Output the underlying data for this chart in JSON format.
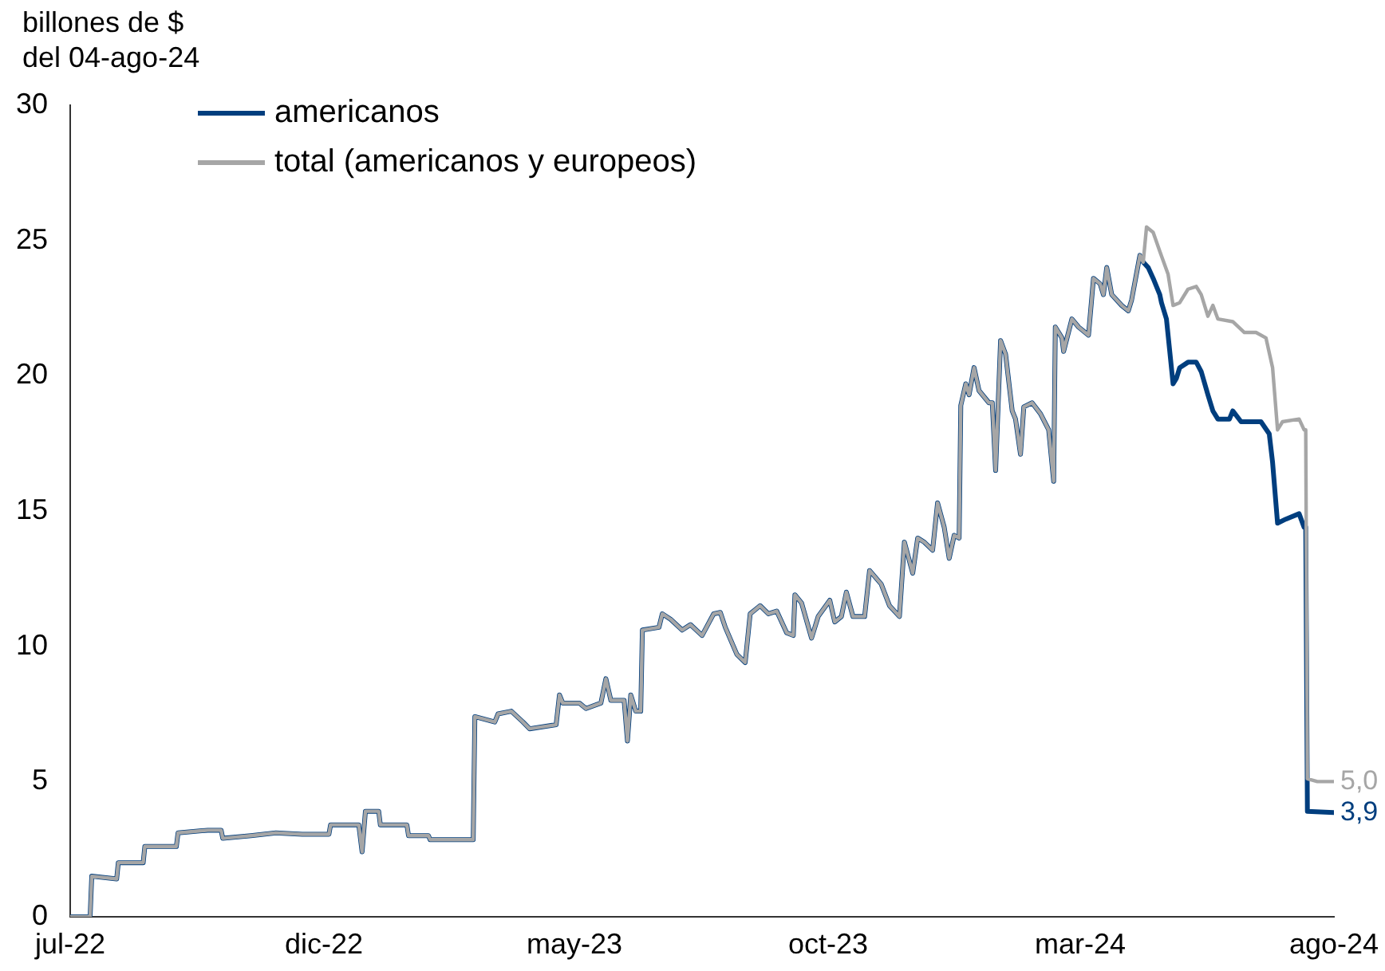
{
  "chart_data": {
    "type": "line",
    "ylabel": "billones de $\ndel 04-ago-24",
    "xlim": [
      "2022-07-01",
      "2024-08-01"
    ],
    "xticks": [
      {
        "value": "2022-07-01",
        "label": "jul-22"
      },
      {
        "value": "2022-12-01",
        "label": "dic-22"
      },
      {
        "value": "2023-05-01",
        "label": "may-23"
      },
      {
        "value": "2023-10-01",
        "label": "oct-23"
      },
      {
        "value": "2024-03-01",
        "label": "mar-24"
      },
      {
        "value": "2024-08-01",
        "label": "ago-24"
      }
    ],
    "ylim": [
      0,
      30
    ],
    "yticks": [
      0,
      5,
      10,
      15,
      20,
      25,
      30
    ],
    "grid": false,
    "legend": "top left",
    "marker": "none",
    "line_style": "solid",
    "annotations": [
      {
        "text": "5,0",
        "x": "2024-08-01",
        "y": 5.0
      },
      {
        "text": "3,9",
        "x": "2024-08-01",
        "y": 3.85
      }
    ],
    "series": [
      {
        "name": "americanos",
        "color": "#003e7e",
        "x": [
          "2022-07-01",
          "2022-07-13",
          "2022-07-14",
          "2022-07-29",
          "2022-07-30",
          "2022-08-14",
          "2022-08-15",
          "2022-09-03",
          "2022-09-04",
          "2022-09-22",
          "2022-09-30",
          "2022-10-01",
          "2022-10-18",
          "2022-11-02",
          "2022-11-18",
          "2022-12-04",
          "2022-12-05",
          "2022-12-22",
          "2022-12-24",
          "2022-12-26",
          "2023-01-03",
          "2023-01-04",
          "2023-01-20",
          "2023-01-21",
          "2023-02-02",
          "2023-02-03",
          "2023-03-01",
          "2023-03-02",
          "2023-03-14",
          "2023-03-16",
          "2023-03-24",
          "2023-03-31",
          "2023-04-04",
          "2023-04-20",
          "2023-04-22",
          "2023-04-24",
          "2023-05-04",
          "2023-05-08",
          "2023-05-17",
          "2023-05-20",
          "2023-05-23",
          "2023-05-31",
          "2023-06-02",
          "2023-06-04",
          "2023-06-07",
          "2023-06-10",
          "2023-06-11",
          "2023-06-21",
          "2023-06-23",
          "2023-06-28",
          "2023-07-05",
          "2023-07-10",
          "2023-07-17",
          "2023-07-24",
          "2023-07-28",
          "2023-07-31",
          "2023-08-07",
          "2023-08-12",
          "2023-08-15",
          "2023-08-21",
          "2023-08-26",
          "2023-08-31",
          "2023-09-06",
          "2023-09-10",
          "2023-09-11",
          "2023-09-15",
          "2023-09-21",
          "2023-09-25",
          "2023-10-02",
          "2023-10-05",
          "2023-10-09",
          "2023-10-12",
          "2023-10-16",
          "2023-10-23",
          "2023-10-26",
          "2023-11-02",
          "2023-11-07",
          "2023-11-13",
          "2023-11-16",
          "2023-11-21",
          "2023-11-24",
          "2023-11-28",
          "2023-12-03",
          "2023-12-06",
          "2023-12-10",
          "2023-12-13",
          "2023-12-16",
          "2023-12-19",
          "2023-12-20",
          "2023-12-23",
          "2023-12-25",
          "2023-12-28",
          "2023-12-31",
          "2024-01-06",
          "2024-01-08",
          "2024-01-10",
          "2024-01-13",
          "2024-01-16",
          "2024-01-20",
          "2024-01-22",
          "2024-01-25",
          "2024-01-27",
          "2024-02-01",
          "2024-02-06",
          "2024-02-11",
          "2024-02-14",
          "2024-02-15",
          "2024-02-19",
          "2024-02-20",
          "2024-02-25",
          "2024-02-29",
          "2024-03-06",
          "2024-03-09",
          "2024-03-13",
          "2024-03-15",
          "2024-03-17",
          "2024-03-20",
          "2024-03-26",
          "2024-03-30",
          "2024-04-01",
          "2024-04-06",
          "2024-04-08",
          "2024-04-11",
          "2024-04-14",
          "2024-04-18",
          "2024-04-19",
          "2024-04-22",
          "2024-04-24",
          "2024-04-26",
          "2024-04-28",
          "2024-04-30",
          "2024-05-05",
          "2024-05-10",
          "2024-05-13",
          "2024-05-17",
          "2024-05-20",
          "2024-05-23",
          "2024-05-30",
          "2024-06-01",
          "2024-06-06",
          "2024-06-18",
          "2024-06-23",
          "2024-06-25",
          "2024-06-28",
          "2024-07-03",
          "2024-07-11",
          "2024-07-14",
          "2024-07-15",
          "2024-07-16",
          "2024-08-01"
        ],
        "values": [
          0,
          0,
          1.5,
          1.4,
          2.0,
          2.0,
          2.6,
          2.6,
          3.1,
          3.2,
          3.2,
          2.9,
          3.0,
          3.1,
          3.05,
          3.05,
          3.4,
          3.4,
          2.4,
          3.9,
          3.9,
          3.4,
          3.4,
          3.0,
          3.0,
          2.85,
          2.85,
          7.4,
          7.2,
          7.5,
          7.6,
          7.2,
          6.95,
          7.1,
          8.2,
          7.9,
          7.9,
          7.7,
          7.9,
          8.8,
          8.0,
          8.0,
          6.5,
          8.2,
          7.6,
          7.6,
          10.6,
          10.7,
          11.2,
          11.0,
          10.6,
          10.8,
          10.4,
          11.2,
          11.25,
          10.7,
          9.7,
          9.4,
          11.2,
          11.5,
          11.2,
          11.3,
          10.5,
          10.4,
          11.9,
          11.6,
          10.3,
          11.1,
          11.7,
          10.9,
          11.1,
          12.0,
          11.1,
          11.1,
          12.8,
          12.3,
          11.5,
          11.1,
          13.85,
          12.7,
          14.0,
          13.85,
          13.55,
          15.3,
          14.4,
          13.25,
          14.1,
          14.0,
          18.9,
          19.7,
          19.3,
          20.3,
          19.45,
          19.0,
          19.0,
          16.5,
          21.3,
          20.8,
          18.7,
          18.4,
          17.1,
          18.85,
          19.0,
          18.6,
          18.0,
          16.1,
          21.8,
          21.4,
          20.9,
          22.1,
          21.8,
          21.5,
          23.6,
          23.4,
          23.0,
          24.0,
          23.0,
          22.6,
          22.4,
          22.8,
          24.45,
          24.2,
          24.0,
          23.6,
          23.0,
          22.7,
          22.1,
          20.9,
          19.7,
          19.9,
          20.3,
          20.5,
          20.5,
          20.15,
          19.3,
          18.7,
          18.4,
          18.4,
          18.7,
          18.3,
          18.3,
          17.85,
          16.8,
          14.55,
          14.7,
          14.9,
          14.4,
          14.4,
          3.9,
          3.85
        ]
      },
      {
        "name": "total (americanos y europeos)",
        "color": "#a6a6a6",
        "x": [
          "2022-07-01",
          "2022-07-13",
          "2022-07-14",
          "2022-07-29",
          "2022-07-30",
          "2022-08-14",
          "2022-08-15",
          "2022-09-03",
          "2022-09-04",
          "2022-09-22",
          "2022-09-30",
          "2022-10-01",
          "2022-10-18",
          "2022-11-02",
          "2022-11-18",
          "2022-12-04",
          "2022-12-05",
          "2022-12-22",
          "2022-12-24",
          "2022-12-26",
          "2023-01-03",
          "2023-01-04",
          "2023-01-20",
          "2023-01-21",
          "2023-02-02",
          "2023-02-03",
          "2023-03-01",
          "2023-03-02",
          "2023-03-14",
          "2023-03-16",
          "2023-03-24",
          "2023-03-31",
          "2023-04-04",
          "2023-04-20",
          "2023-04-22",
          "2023-04-24",
          "2023-05-04",
          "2023-05-08",
          "2023-05-17",
          "2023-05-20",
          "2023-05-23",
          "2023-05-31",
          "2023-06-02",
          "2023-06-04",
          "2023-06-07",
          "2023-06-10",
          "2023-06-11",
          "2023-06-21",
          "2023-06-23",
          "2023-06-28",
          "2023-07-05",
          "2023-07-10",
          "2023-07-17",
          "2023-07-24",
          "2023-07-28",
          "2023-07-31",
          "2023-08-07",
          "2023-08-12",
          "2023-08-15",
          "2023-08-21",
          "2023-08-26",
          "2023-08-31",
          "2023-09-06",
          "2023-09-10",
          "2023-09-11",
          "2023-09-15",
          "2023-09-21",
          "2023-09-25",
          "2023-10-02",
          "2023-10-05",
          "2023-10-09",
          "2023-10-12",
          "2023-10-16",
          "2023-10-23",
          "2023-10-26",
          "2023-11-02",
          "2023-11-07",
          "2023-11-13",
          "2023-11-16",
          "2023-11-21",
          "2023-11-24",
          "2023-11-28",
          "2023-12-03",
          "2023-12-06",
          "2023-12-10",
          "2023-12-13",
          "2023-12-16",
          "2023-12-19",
          "2023-12-20",
          "2023-12-23",
          "2023-12-25",
          "2023-12-28",
          "2023-12-31",
          "2024-01-06",
          "2024-01-08",
          "2024-01-10",
          "2024-01-13",
          "2024-01-16",
          "2024-01-20",
          "2024-01-22",
          "2024-01-25",
          "2024-01-27",
          "2024-02-01",
          "2024-02-06",
          "2024-02-11",
          "2024-02-14",
          "2024-02-15",
          "2024-02-19",
          "2024-02-20",
          "2024-02-25",
          "2024-02-29",
          "2024-03-06",
          "2024-03-09",
          "2024-03-13",
          "2024-03-15",
          "2024-03-17",
          "2024-03-20",
          "2024-03-26",
          "2024-03-30",
          "2024-04-01",
          "2024-04-06",
          "2024-04-08",
          "2024-04-10",
          "2024-04-14",
          "2024-04-18",
          "2024-04-23",
          "2024-04-26",
          "2024-04-30",
          "2024-05-05",
          "2024-05-10",
          "2024-05-13",
          "2024-05-17",
          "2024-05-20",
          "2024-05-23",
          "2024-06-01",
          "2024-06-08",
          "2024-06-15",
          "2024-06-21",
          "2024-06-25",
          "2024-06-28",
          "2024-07-01",
          "2024-07-11",
          "2024-07-14",
          "2024-07-15",
          "2024-07-16",
          "2024-07-22",
          "2024-08-01"
        ],
        "values": [
          0,
          0,
          1.5,
          1.4,
          2.0,
          2.0,
          2.6,
          2.6,
          3.1,
          3.2,
          3.2,
          2.9,
          3.0,
          3.1,
          3.05,
          3.05,
          3.4,
          3.4,
          2.4,
          3.9,
          3.9,
          3.4,
          3.4,
          3.0,
          3.0,
          2.85,
          2.85,
          7.4,
          7.2,
          7.5,
          7.6,
          7.2,
          6.95,
          7.1,
          8.2,
          7.9,
          7.9,
          7.7,
          7.9,
          8.8,
          8.0,
          8.0,
          6.5,
          8.2,
          7.6,
          7.6,
          10.6,
          10.7,
          11.2,
          11.0,
          10.6,
          10.8,
          10.4,
          11.2,
          11.25,
          10.7,
          9.7,
          9.4,
          11.2,
          11.5,
          11.2,
          11.3,
          10.5,
          10.4,
          11.9,
          11.6,
          10.3,
          11.1,
          11.7,
          10.9,
          11.1,
          12.0,
          11.1,
          11.1,
          12.8,
          12.3,
          11.5,
          11.1,
          13.85,
          12.7,
          14.0,
          13.85,
          13.55,
          15.3,
          14.4,
          13.25,
          14.1,
          14.0,
          18.9,
          19.7,
          19.3,
          20.3,
          19.45,
          19.0,
          19.0,
          16.5,
          21.3,
          20.8,
          18.7,
          18.4,
          17.1,
          18.85,
          19.0,
          18.6,
          18.0,
          16.1,
          21.8,
          21.4,
          20.9,
          22.1,
          21.8,
          21.5,
          23.6,
          23.4,
          23.0,
          24.0,
          23.0,
          22.6,
          22.4,
          22.8,
          24.45,
          24.2,
          25.5,
          25.3,
          24.6,
          23.75,
          22.6,
          22.7,
          23.2,
          23.3,
          23.0,
          22.2,
          22.6,
          22.1,
          22.0,
          21.6,
          21.6,
          21.4,
          20.3,
          18.0,
          18.3,
          18.4,
          18.0,
          18.0,
          5.1,
          5.0,
          5.0
        ]
      }
    ]
  }
}
